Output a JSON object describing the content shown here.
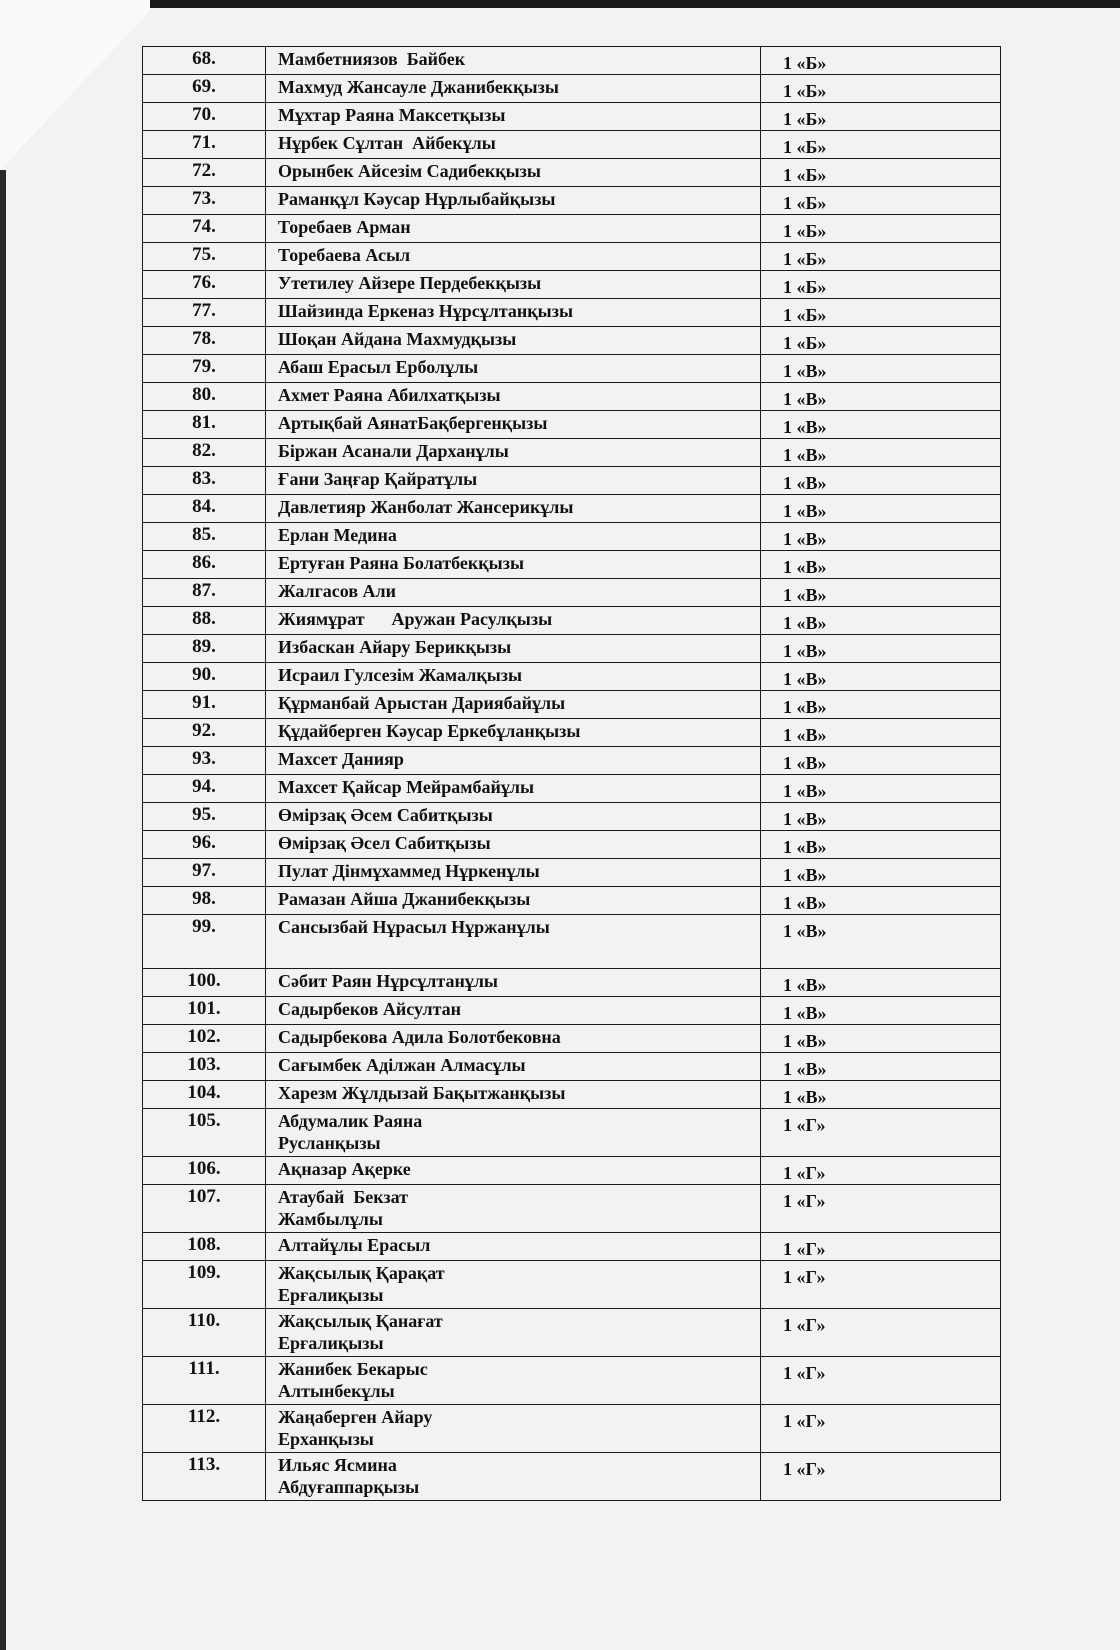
{
  "rows": [
    {
      "num": "68.",
      "name": [
        "Мамбетниязов  Байбек"
      ],
      "class": "1 «Б»"
    },
    {
      "num": "69.",
      "name": [
        "Махмуд Жансауле Джанибекқызы"
      ],
      "class": "1 «Б»"
    },
    {
      "num": "70.",
      "name": [
        "Мұхтар Раяна Максетқызы"
      ],
      "class": "1 «Б»"
    },
    {
      "num": "71.",
      "name": [
        "Нұрбек Сұлтан  Айбекұлы"
      ],
      "class": "1 «Б»"
    },
    {
      "num": "72.",
      "name": [
        "Орынбек Айсезім Садибекқызы"
      ],
      "class": "1 «Б»"
    },
    {
      "num": "73.",
      "name": [
        "Раманқұл Кәусар Нұрлыбайқызы"
      ],
      "class": "1 «Б»"
    },
    {
      "num": "74.",
      "name": [
        "Торебаев Арман"
      ],
      "class": "1 «Б»"
    },
    {
      "num": "75.",
      "name": [
        "Торебаева Асыл"
      ],
      "class": "1 «Б»"
    },
    {
      "num": "76.",
      "name": [
        "Утетилеу Айзере Пердебекқызы"
      ],
      "class": "1 «Б»"
    },
    {
      "num": "77.",
      "name": [
        "Шайзинда Еркеназ Нұрсұлтанқызы"
      ],
      "class": "1 «Б»"
    },
    {
      "num": "78.",
      "name": [
        "Шоқан Айдана Махмудқызы"
      ],
      "class": "1 «Б»"
    },
    {
      "num": "79.",
      "name": [
        "Абаш Ерасыл Ерболұлы"
      ],
      "class": "1 «В»"
    },
    {
      "num": "80.",
      "name": [
        "Ахмет Раяна Абилхатқызы"
      ],
      "class": "1 «В»"
    },
    {
      "num": "81.",
      "name": [
        "Артықбай АянатБақбергенқызы"
      ],
      "class": "1 «В»"
    },
    {
      "num": "82.",
      "name": [
        "Біржан Асанали Дарханұлы"
      ],
      "class": "1 «В»"
    },
    {
      "num": "83.",
      "name": [
        "Ғани Заңғар Қайратұлы"
      ],
      "class": "1 «В»"
    },
    {
      "num": "84.",
      "name": [
        "Давлетияр Жанболат Жансерикұлы"
      ],
      "class": "1 «В»"
    },
    {
      "num": "85.",
      "name": [
        "Ерлан Медина"
      ],
      "class": "1 «В»"
    },
    {
      "num": "86.",
      "name": [
        "Ертуған Раяна Болатбекқызы"
      ],
      "class": "1 «В»"
    },
    {
      "num": "87.",
      "name": [
        "Жалгасов Али"
      ],
      "class": "1 «В»"
    },
    {
      "num": "88.",
      "name": [
        "Жиямұрат      Аружан Расулқызы"
      ],
      "class": "1 «В»"
    },
    {
      "num": "89.",
      "name": [
        "Избаскан Айару Берикқызы"
      ],
      "class": "1 «В»"
    },
    {
      "num": "90.",
      "name": [
        "Исраил Гулсезім Жамалқызы"
      ],
      "class": "1 «В»"
    },
    {
      "num": "91.",
      "name": [
        "Құрманбай Арыстан Дариябайұлы"
      ],
      "class": "1 «В»"
    },
    {
      "num": "92.",
      "name": [
        "Құдайберген Кәусар Еркебұланқызы"
      ],
      "class": "1 «В»"
    },
    {
      "num": "93.",
      "name": [
        "Махсет Данияр"
      ],
      "class": "1 «В»"
    },
    {
      "num": "94.",
      "name": [
        "Махсет Қайсар Мейрамбайұлы"
      ],
      "class": "1 «В»"
    },
    {
      "num": "95.",
      "name": [
        "Өмірзақ Әсем Сабитқызы"
      ],
      "class": "1 «В»"
    },
    {
      "num": "96.",
      "name": [
        "Өмірзақ Әсел Сабитқызы"
      ],
      "class": "1 «В»"
    },
    {
      "num": "97.",
      "name": [
        "Пулат Дінмұхаммед Нұркенұлы"
      ],
      "class": "1 «В»"
    },
    {
      "num": "98.",
      "name": [
        "Рамазан Айша Джанибекқызы"
      ],
      "class": "1 «В»"
    },
    {
      "num": "99.",
      "name": [
        "Сансызбай Нұрасыл Нұржанұлы"
      ],
      "class": "1 «В»"
    },
    {
      "num": "100.",
      "name": [
        "Сәбит Раян Нұрсұлтанұлы"
      ],
      "class": "1 «В»"
    },
    {
      "num": "101.",
      "name": [
        "Садырбеков Айсултан"
      ],
      "class": "1 «В»"
    },
    {
      "num": "102.",
      "name": [
        "Садырбекова Адила Болотбековна"
      ],
      "class": "1 «В»"
    },
    {
      "num": "103.",
      "name": [
        "Сағымбек Аділжан Алмасұлы"
      ],
      "class": "1 «В»"
    },
    {
      "num": "104.",
      "name": [
        "Харезм Жұлдызай Бақытжанқызы"
      ],
      "class": "1 «В»"
    },
    {
      "num": "105.",
      "name": [
        "Абдумалик Раяна",
        "Русланқызы"
      ],
      "class": "1 «Г»"
    },
    {
      "num": "106.",
      "name": [
        "Ақназар Ақерке"
      ],
      "class": "1 «Г»"
    },
    {
      "num": "107.",
      "name": [
        "Атаубай  Бекзат",
        "Жамбылұлы"
      ],
      "class": "1 «Г»"
    },
    {
      "num": "108.",
      "name": [
        "Алтайұлы Ерасыл"
      ],
      "class": "1 «Г»"
    },
    {
      "num": "109.",
      "name": [
        "Жақсылық Қарақат",
        "Ерғaлиқызы"
      ],
      "class": "1 «Г»"
    },
    {
      "num": "110.",
      "name": [
        "Жақсылық Қанағат",
        "Ерғалиқызы"
      ],
      "class": "1 «Г»"
    },
    {
      "num": "111.",
      "name": [
        "Жанибек Бекарыс",
        "Алтынбекұлы"
      ],
      "class": "1 «Г»"
    },
    {
      "num": "112.",
      "name": [
        "Жаңаберген Айару",
        "Ерханқызы"
      ],
      "class": "1 «Г»"
    },
    {
      "num": "113.",
      "name": [
        "Ильяс Ясмина",
        "Абдуғаппарқызы"
      ],
      "class": "1 «Г»"
    }
  ]
}
